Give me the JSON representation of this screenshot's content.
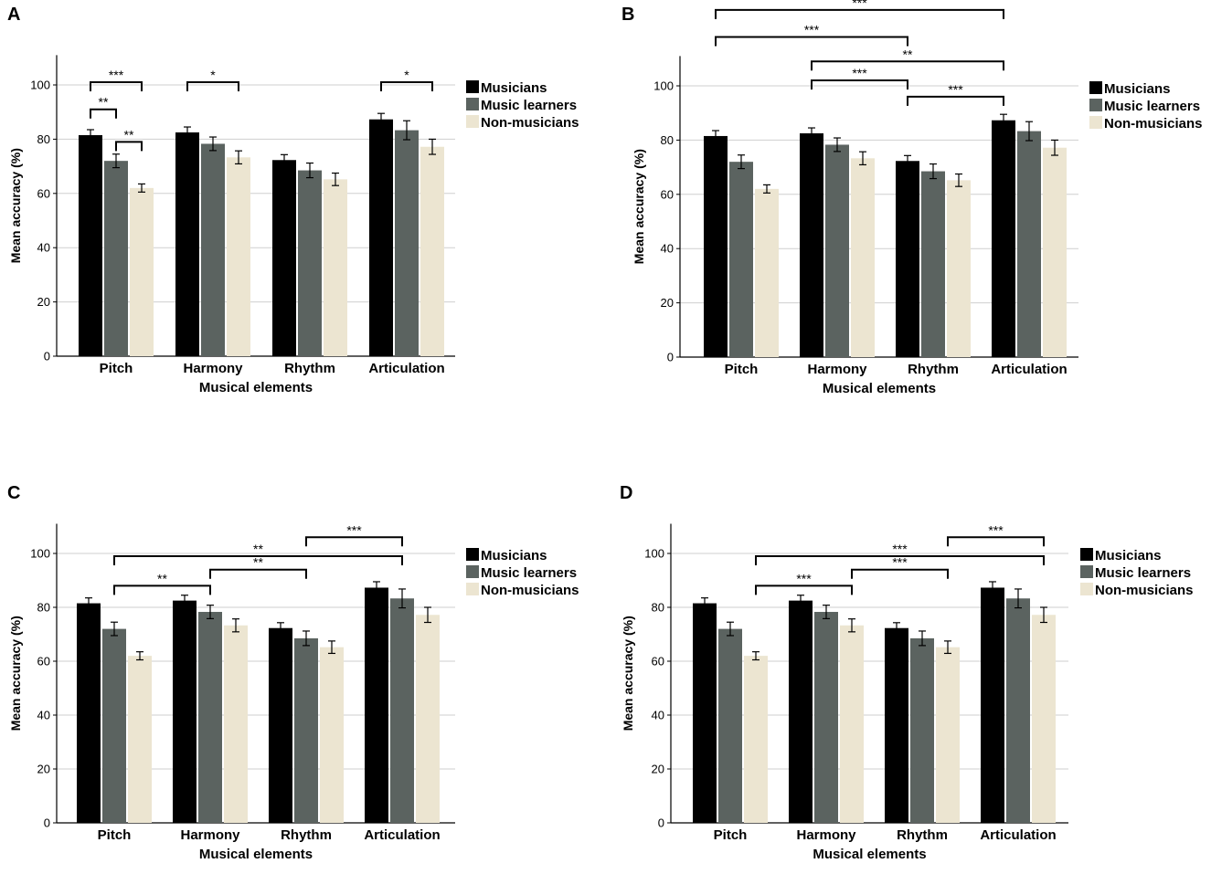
{
  "chart_data": [
    {
      "type": "bar",
      "panel_label": "A",
      "categories": [
        "Pitch",
        "Harmony",
        "Rhythm",
        "Articulation"
      ],
      "series": [
        {
          "name": "Musicians",
          "color": "#000000",
          "values": [
            81.5,
            82.5,
            72.3,
            87.3
          ],
          "errors": [
            2.0,
            2.0,
            2.0,
            2.2
          ]
        },
        {
          "name": "Music learners",
          "color": "#5b6360",
          "values": [
            72.0,
            78.3,
            68.5,
            83.3
          ],
          "errors": [
            2.5,
            2.5,
            2.7,
            3.5
          ]
        },
        {
          "name": "Non-musicians",
          "color": "#ece5d1",
          "values": [
            62.0,
            73.3,
            65.2,
            77.2
          ],
          "errors": [
            1.5,
            2.4,
            2.3,
            2.8
          ]
        }
      ],
      "xlabel": "Musical elements",
      "ylabel": "Mean accuracy (%)",
      "yticks": [
        0,
        20,
        40,
        60,
        80,
        100
      ],
      "ylim": [
        0,
        111
      ],
      "legend_position": "right",
      "significance": [
        {
          "from_cat": 0,
          "from_series": 0,
          "to_cat": 0,
          "to_series": 2,
          "level": 101,
          "text": "***"
        },
        {
          "from_cat": 0,
          "from_series": 0,
          "to_cat": 0,
          "to_series": 1,
          "level": 91,
          "text": "**"
        },
        {
          "from_cat": 0,
          "from_series": 1,
          "to_cat": 0,
          "to_series": 2,
          "level": 79,
          "text": "**"
        },
        {
          "from_cat": 1,
          "from_series": 0,
          "to_cat": 1,
          "to_series": 2,
          "level": 101,
          "text": "*"
        },
        {
          "from_cat": 3,
          "from_series": 0,
          "to_cat": 3,
          "to_series": 2,
          "level": 101,
          "text": "*"
        }
      ]
    },
    {
      "type": "bar",
      "panel_label": "B",
      "categories": [
        "Pitch",
        "Harmony",
        "Rhythm",
        "Articulation"
      ],
      "series": [
        {
          "name": "Musicians",
          "color": "#000000",
          "values": [
            81.5,
            82.5,
            72.3,
            87.3
          ],
          "errors": [
            2.0,
            2.0,
            2.0,
            2.2
          ]
        },
        {
          "name": "Music learners",
          "color": "#5b6360",
          "values": [
            72.0,
            78.3,
            68.5,
            83.3
          ],
          "errors": [
            2.5,
            2.5,
            2.7,
            3.5
          ]
        },
        {
          "name": "Non-musicians",
          "color": "#ece5d1",
          "values": [
            62.0,
            73.3,
            65.2,
            77.2
          ],
          "errors": [
            1.5,
            2.4,
            2.3,
            2.8
          ]
        }
      ],
      "xlabel": "Musical elements",
      "ylabel": "Mean accuracy (%)",
      "yticks": [
        0,
        20,
        40,
        60,
        80,
        100
      ],
      "ylim": [
        0,
        111
      ],
      "legend_position": "right",
      "significance": [
        {
          "from_cat": 0,
          "from_series": 0,
          "to_cat": 3,
          "to_series": 0,
          "level": 128,
          "text": "***"
        },
        {
          "from_cat": 0,
          "from_series": 0,
          "to_cat": 2,
          "to_series": 0,
          "level": 118,
          "text": "***"
        },
        {
          "from_cat": 1,
          "from_series": 0,
          "to_cat": 3,
          "to_series": 0,
          "level": 109,
          "text": "**"
        },
        {
          "from_cat": 1,
          "from_series": 0,
          "to_cat": 2,
          "to_series": 0,
          "level": 102,
          "text": "***"
        },
        {
          "from_cat": 2,
          "from_series": 0,
          "to_cat": 3,
          "to_series": 0,
          "level": 96,
          "text": "***"
        }
      ]
    },
    {
      "type": "bar",
      "panel_label": "C",
      "categories": [
        "Pitch",
        "Harmony",
        "Rhythm",
        "Articulation"
      ],
      "series": [
        {
          "name": "Musicians",
          "color": "#000000",
          "values": [
            81.5,
            82.5,
            72.3,
            87.3
          ],
          "errors": [
            2.0,
            2.0,
            2.0,
            2.2
          ]
        },
        {
          "name": "Music learners",
          "color": "#5b6360",
          "values": [
            72.0,
            78.3,
            68.5,
            83.3
          ],
          "errors": [
            2.5,
            2.5,
            2.7,
            3.5
          ]
        },
        {
          "name": "Non-musicians",
          "color": "#ece5d1",
          "values": [
            62.0,
            73.3,
            65.2,
            77.2
          ],
          "errors": [
            1.5,
            2.4,
            2.3,
            2.8
          ]
        }
      ],
      "xlabel": "Musical elements",
      "ylabel": "Mean accuracy (%)",
      "yticks": [
        0,
        20,
        40,
        60,
        80,
        100
      ],
      "ylim": [
        0,
        111
      ],
      "legend_position": "right",
      "significance": [
        {
          "from_cat": 2,
          "from_series": 1,
          "to_cat": 3,
          "to_series": 1,
          "level": 106,
          "text": "***"
        },
        {
          "from_cat": 0,
          "from_series": 1,
          "to_cat": 3,
          "to_series": 1,
          "level": 99,
          "text": "**"
        },
        {
          "from_cat": 1,
          "from_series": 1,
          "to_cat": 2,
          "to_series": 1,
          "level": 94,
          "text": "**"
        },
        {
          "from_cat": 0,
          "from_series": 1,
          "to_cat": 1,
          "to_series": 1,
          "level": 88,
          "text": "**"
        }
      ]
    },
    {
      "type": "bar",
      "panel_label": "D",
      "categories": [
        "Pitch",
        "Harmony",
        "Rhythm",
        "Articulation"
      ],
      "series": [
        {
          "name": "Musicians",
          "color": "#000000",
          "values": [
            81.5,
            82.5,
            72.3,
            87.3
          ],
          "errors": [
            2.0,
            2.0,
            2.0,
            2.2
          ]
        },
        {
          "name": "Music learners",
          "color": "#5b6360",
          "values": [
            72.0,
            78.3,
            68.5,
            83.3
          ],
          "errors": [
            2.5,
            2.5,
            2.7,
            3.5
          ]
        },
        {
          "name": "Non-musicians",
          "color": "#ece5d1",
          "values": [
            62.0,
            73.3,
            65.2,
            77.2
          ],
          "errors": [
            1.5,
            2.4,
            2.3,
            2.8
          ]
        }
      ],
      "xlabel": "Musical elements",
      "ylabel": "Mean accuracy (%)",
      "yticks": [
        0,
        20,
        40,
        60,
        80,
        100
      ],
      "ylim": [
        0,
        111
      ],
      "legend_position": "right",
      "significance": [
        {
          "from_cat": 2,
          "from_series": 2,
          "to_cat": 3,
          "to_series": 2,
          "level": 106,
          "text": "***"
        },
        {
          "from_cat": 0,
          "from_series": 2,
          "to_cat": 3,
          "to_series": 2,
          "level": 99,
          "text": "***"
        },
        {
          "from_cat": 1,
          "from_series": 2,
          "to_cat": 2,
          "to_series": 2,
          "level": 94,
          "text": "***"
        },
        {
          "from_cat": 0,
          "from_series": 2,
          "to_cat": 1,
          "to_series": 2,
          "level": 88,
          "text": "***"
        }
      ]
    }
  ]
}
